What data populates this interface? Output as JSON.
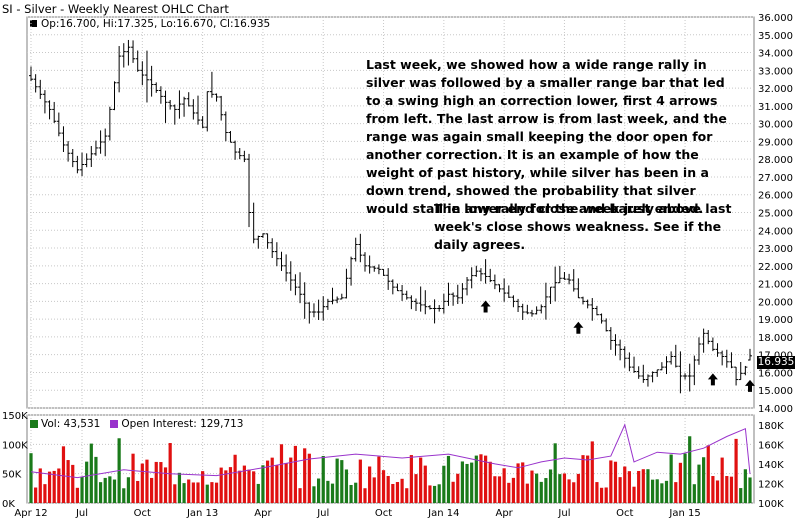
{
  "title": "SI - Silver - Weekly Nearest OHLC Chart",
  "price_info": "Op:16.700, Hi:17.325, Lo:16.670, Cl:16.935",
  "last_price_label": "16.935",
  "annotation_1": "Last week, we showed how a wide range rally in silver was followed by a smaller range bar that led to a swing high an correction lower, first 4 arrows from left.  The last arrow is from last week, and the range was again small keeping the door open for another correction.  It is an example of how the weight of past history, while silver has been in a down trend, showed the probability that silver would stall in any rally for the week just ended.",
  "annotation_2": "The lower end close and barely above last week's close shows weakness.  See if the daily agrees.",
  "volume_legend": {
    "vol": "Vol: 43,531",
    "oi": "Open Interest: 129,713"
  },
  "colors": {
    "up": "#1a7a1a",
    "down": "#e01010",
    "oi": "#9933cc",
    "grid": "#c8c8c8",
    "bar": "#000000"
  },
  "chart_data": [
    {
      "type": "ohlc",
      "title": "SI - Silver - Weekly Nearest OHLC Chart",
      "x_tick_labels": [
        "Apr 12",
        "Jul",
        "Oct",
        "Jan 13",
        "Apr",
        "Jul",
        "Oct",
        "Jan 14",
        "Apr",
        "Jul",
        "Oct",
        "Jan 15"
      ],
      "y_tick_labels": [
        "14.000",
        "15.000",
        "16.000",
        "17.000",
        "18.000",
        "19.000",
        "20.000",
        "21.000",
        "22.000",
        "23.000",
        "24.000",
        "25.000",
        "26.000",
        "27.000",
        "28.000",
        "29.000",
        "30.000",
        "31.000",
        "32.000",
        "33.000",
        "34.000",
        "35.000",
        "36.000"
      ],
      "ylim": [
        14,
        36
      ],
      "grid": true,
      "close_anchors": [
        [
          0,
          32.5
        ],
        [
          4,
          30.8
        ],
        [
          7,
          28.8
        ],
        [
          10,
          27.4
        ],
        [
          13,
          28.3
        ],
        [
          16,
          29.3
        ],
        [
          19,
          33.8
        ],
        [
          21,
          34.3
        ],
        [
          23,
          33.0
        ],
        [
          26,
          32.2
        ],
        [
          29,
          31.2
        ],
        [
          31,
          30.8
        ],
        [
          33,
          31.4
        ],
        [
          35,
          30.6
        ],
        [
          37,
          29.8
        ],
        [
          38,
          31.8
        ],
        [
          40,
          31.5
        ],
        [
          42,
          29.5
        ],
        [
          44,
          28.4
        ],
        [
          46,
          28.0
        ],
        [
          47,
          25.0
        ],
        [
          48,
          23.5
        ],
        [
          50,
          23.8
        ],
        [
          52,
          22.8
        ],
        [
          55,
          21.6
        ],
        [
          58,
          20.4
        ],
        [
          60,
          19.4
        ],
        [
          62,
          19.4
        ],
        [
          64,
          20.0
        ],
        [
          67,
          20.2
        ],
        [
          69,
          22.4
        ],
        [
          70,
          23.2
        ],
        [
          72,
          22.0
        ],
        [
          75,
          21.8
        ],
        [
          78,
          20.8
        ],
        [
          82,
          20.0
        ],
        [
          86,
          19.6
        ],
        [
          88,
          19.6
        ],
        [
          90,
          20.4
        ],
        [
          92,
          20.2
        ],
        [
          94,
          21.2
        ],
        [
          96,
          21.7
        ],
        [
          98,
          21.4
        ],
        [
          101,
          20.7
        ],
        [
          104,
          20.0
        ],
        [
          106,
          19.4
        ],
        [
          108,
          19.3
        ],
        [
          110,
          19.7
        ],
        [
          112,
          20.8
        ],
        [
          114,
          21.3
        ],
        [
          116,
          21.2
        ],
        [
          118,
          20.2
        ],
        [
          121,
          19.6
        ],
        [
          123,
          18.9
        ],
        [
          125,
          17.8
        ],
        [
          127,
          17.3
        ],
        [
          129,
          16.3
        ],
        [
          131,
          15.8
        ],
        [
          132,
          15.6
        ],
        [
          134,
          16.0
        ],
        [
          136,
          16.3
        ],
        [
          138,
          16.9
        ],
        [
          140,
          15.8
        ],
        [
          142,
          15.8
        ],
        [
          144,
          17.6
        ],
        [
          145,
          18.2
        ],
        [
          147,
          17.3
        ],
        [
          149,
          16.9
        ],
        [
          151,
          16.3
        ],
        [
          152,
          15.6
        ],
        [
          154,
          16.3
        ],
        [
          155,
          16.935
        ]
      ],
      "ranges": {
        "min_low": 14.4,
        "max_high": 35.4
      },
      "up_arrows_at_weeks": [
        98,
        118,
        147,
        155
      ],
      "last": {
        "open": 16.7,
        "high": 17.325,
        "low": 16.67,
        "close": 16.935
      }
    },
    {
      "type": "bar",
      "y_tick_labels_left": [
        "0K",
        "50K",
        "100K",
        "150K"
      ],
      "y_tick_labels_right": [
        "100K",
        "120K",
        "140K",
        "160K",
        "180K"
      ],
      "ylim_volume": [
        0,
        150000
      ],
      "ylim_open_interest": [
        100000,
        190000
      ],
      "grid": true,
      "volume_note": "weekly volume bars, roughly 20K-130K",
      "open_interest_anchors": [
        [
          0,
          132
        ],
        [
          10,
          126
        ],
        [
          20,
          134
        ],
        [
          30,
          130
        ],
        [
          40,
          128
        ],
        [
          50,
          136
        ],
        [
          60,
          145
        ],
        [
          70,
          150
        ],
        [
          80,
          146
        ],
        [
          90,
          150
        ],
        [
          100,
          140
        ],
        [
          105,
          136
        ],
        [
          110,
          142
        ],
        [
          115,
          146
        ],
        [
          120,
          144
        ],
        [
          125,
          148
        ],
        [
          128,
          180
        ],
        [
          130,
          142
        ],
        [
          135,
          152
        ],
        [
          140,
          150
        ],
        [
          145,
          156
        ],
        [
          150,
          168
        ],
        [
          154,
          176
        ],
        [
          155,
          129.713
        ]
      ]
    }
  ]
}
